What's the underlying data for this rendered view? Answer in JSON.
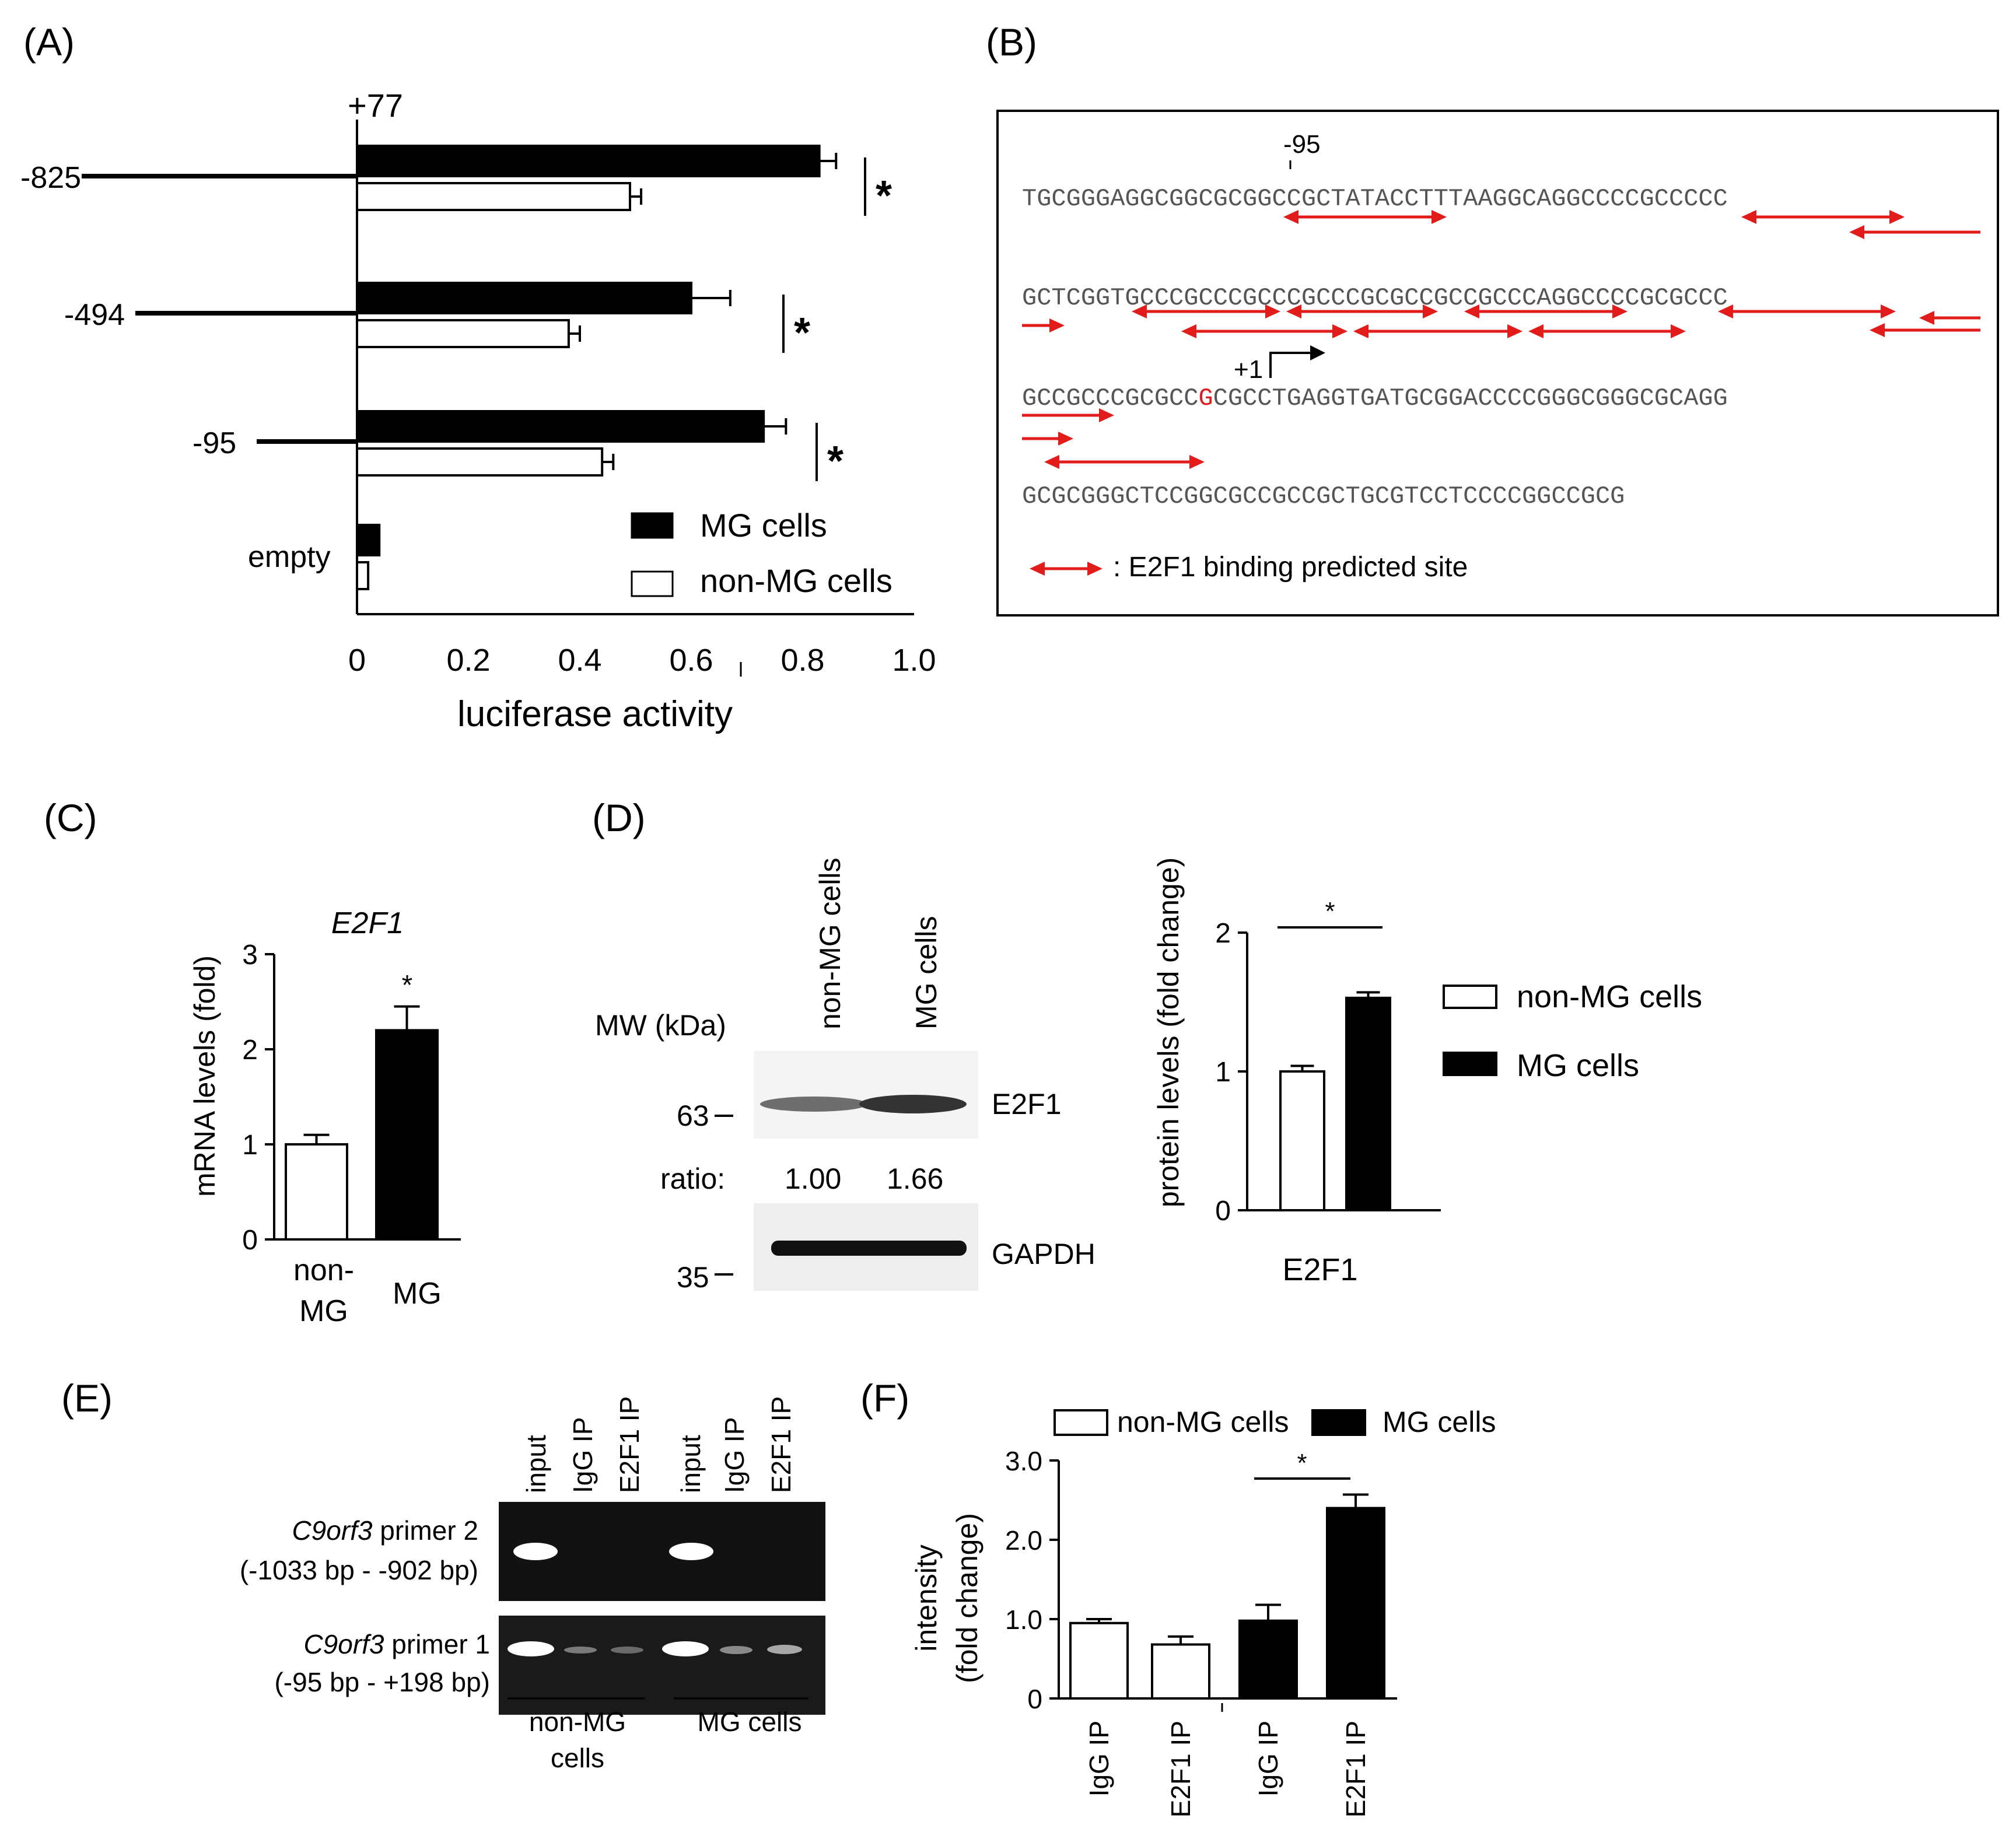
{
  "panels": {
    "A": "(A)",
    "B": "(B)",
    "C": "(C)",
    "D": "(D)",
    "E": "(E)",
    "F": "(F)"
  },
  "colors": {
    "filled": "#000000",
    "open": "#ffffff",
    "arrow": "#e21b1b",
    "text": "#000000"
  },
  "chart_data": [
    {
      "id": "A",
      "type": "bar",
      "orientation": "horizontal",
      "categories": [
        "-825",
        "-494",
        "-95",
        "empty"
      ],
      "series": [
        {
          "name": "MG cells",
          "values": [
            0.83,
            0.6,
            0.73,
            0.04
          ],
          "errors": [
            0.03,
            0.07,
            0.04,
            0.0
          ]
        },
        {
          "name": "non-MG cells",
          "values": [
            0.49,
            0.38,
            0.44,
            0.02
          ],
          "errors": [
            0.02,
            0.02,
            0.02,
            0.0
          ]
        }
      ],
      "xlabel": "luciferase activity",
      "ticks": [
        "0",
        "0.2",
        "0.4",
        "0.6",
        "0.8",
        "1.0"
      ],
      "xlim": [
        0,
        1.0
      ],
      "construct_end_label": "+77",
      "significance": [
        "*",
        "*",
        "*"
      ]
    },
    {
      "id": "C",
      "type": "bar",
      "title": "E2F1",
      "categories": [
        "non-\nMG",
        "MG"
      ],
      "values": [
        1.0,
        2.2
      ],
      "errors": [
        0.1,
        0.25
      ],
      "ylabel": "mRNA levels (fold)",
      "ticks": [
        "0",
        "1",
        "2",
        "3"
      ],
      "ylim": [
        0,
        3
      ],
      "significance": "*"
    },
    {
      "id": "D",
      "type": "bar",
      "categories": [
        "E2F1"
      ],
      "series": [
        {
          "name": "non-MG cells",
          "values": [
            1.0
          ],
          "errors": [
            0.04
          ]
        },
        {
          "name": "MG cells",
          "values": [
            1.53
          ],
          "errors": [
            0.04
          ]
        }
      ],
      "ylabel": "protein levels (fold change)",
      "ticks": [
        "0",
        "1",
        "2"
      ],
      "ylim": [
        0,
        2
      ],
      "significance": "*"
    },
    {
      "id": "F",
      "type": "bar",
      "categories": [
        "IgG IP",
        "E2F1 IP",
        "IgG IP",
        "E2F1 IP"
      ],
      "groups": [
        "non-MG cells",
        "non-MG cells",
        "MG cells",
        "MG cells"
      ],
      "values": [
        0.95,
        0.68,
        0.98,
        2.4
      ],
      "errors": [
        0.05,
        0.1,
        0.2,
        0.17
      ],
      "ylabel": "intensity\n(fold change)",
      "ticks": [
        "0",
        "1.0",
        "2.0",
        "3.0"
      ],
      "ylim": [
        0,
        3.0
      ],
      "legend": [
        "non-MG cells",
        "MG cells"
      ],
      "significance": "*"
    }
  ],
  "panelB": {
    "marker_95": "-95",
    "marker_plus1": "+1",
    "line1_a": "TGCGGGAGGCGGC",
    "line1_b": "GCGGCCGCTATACCTTTAAGGCAGGCCCCGCCCCC",
    "line2": "GCTCGGTGCCCGCCCGCCCGCCCGCGCCGCCGCCCAGGCCCCGCGCCC",
    "line3_a": "GCCGCCCGCGCC",
    "line3_g": "G",
    "line3_b": "CGCCTGAGGTGATGCGGACCCCGGGCGGGCGCAGG",
    "line4": "GCGCGGGCTCCGGCGCCGCCGCTGCGTCCTCCCCGGCCGCG",
    "legend": ": E2F1 binding predicted site"
  },
  "panelD": {
    "lanes": [
      "non-MG cells",
      "MG cells"
    ],
    "mw_label": "MW (kDa)",
    "mw_63": "63",
    "mw_35": "35",
    "band_e2f1": "E2F1",
    "band_gapdh": "GAPDH",
    "ratio_label": "ratio:",
    "ratio_values": [
      "1.00",
      "1.66"
    ]
  },
  "panelE": {
    "lanes": [
      "input",
      "IgG IP",
      "E2F1 IP",
      "input",
      "IgG IP",
      "E2F1 IP"
    ],
    "primer2_gene": "C9orf3",
    "primer2_name": " primer 2",
    "primer2_range": "(-1033 bp - -902 bp)",
    "primer1_gene": "C9orf3",
    "primer1_name": " primer 1",
    "primer1_range": "(-95 bp - +198 bp)",
    "group1_line1": "non-MG",
    "group1_line2": "cells",
    "group2": "MG cells"
  }
}
